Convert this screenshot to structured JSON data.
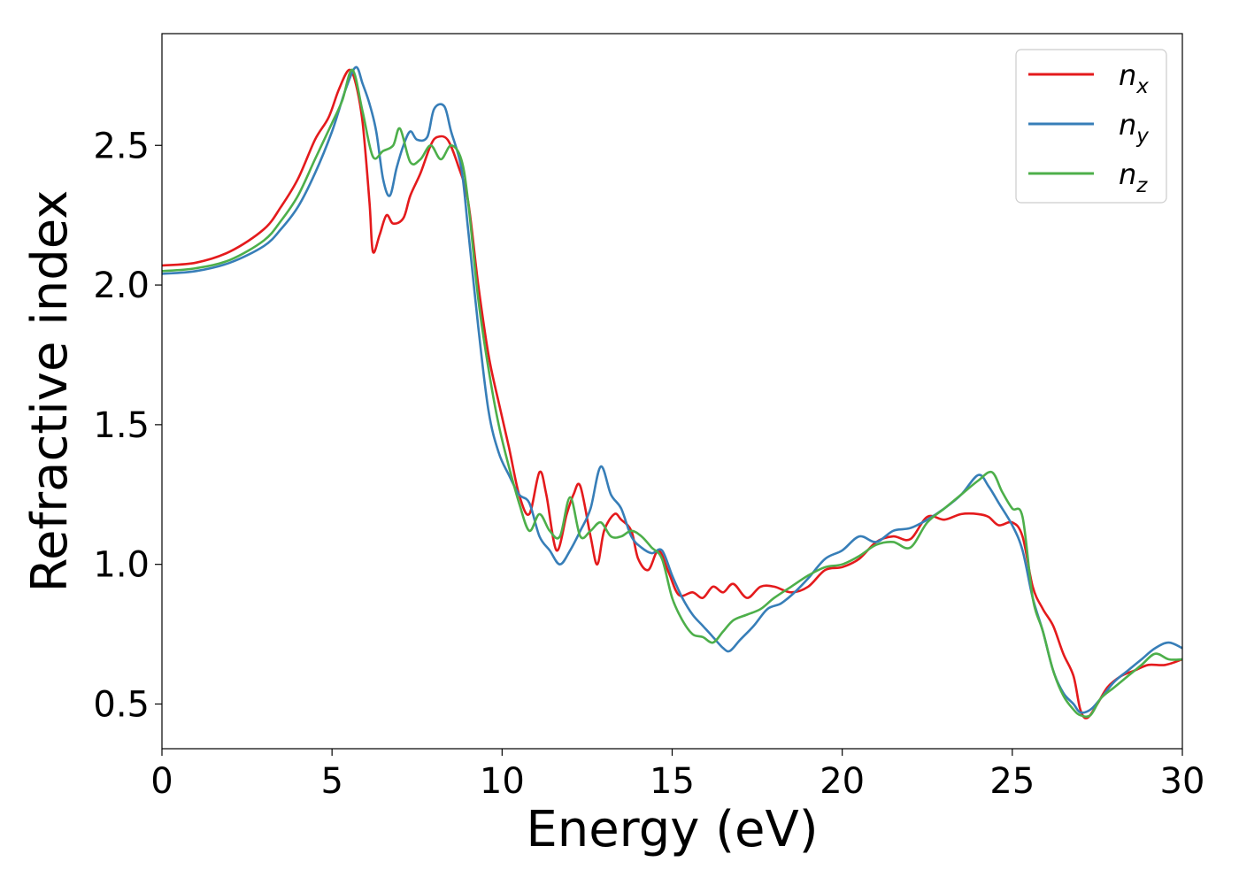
{
  "chart_data": {
    "type": "line",
    "title": "",
    "xlabel": "Energy (eV)",
    "ylabel": "Refractive index",
    "xlim": [
      0,
      30
    ],
    "ylim": [
      0.34,
      2.9
    ],
    "xticks": [
      0,
      5,
      10,
      15,
      20,
      25,
      30
    ],
    "xtick_labels": [
      "0",
      "5",
      "10",
      "15",
      "20",
      "25",
      "30"
    ],
    "yticks": [
      0.5,
      1.0,
      1.5,
      2.0,
      2.5
    ],
    "ytick_labels": [
      "0.5",
      "1.0",
      "1.5",
      "2.0",
      "2.5"
    ],
    "grid": false,
    "legend_position": "top-right",
    "series": [
      {
        "name": "n",
        "subscript": "x",
        "color": "#e41a1c",
        "points": [
          [
            0,
            2.07
          ],
          [
            1,
            2.08
          ],
          [
            2,
            2.12
          ],
          [
            3,
            2.2
          ],
          [
            3.5,
            2.28
          ],
          [
            4,
            2.38
          ],
          [
            4.5,
            2.52
          ],
          [
            4.9,
            2.6
          ],
          [
            5.2,
            2.7
          ],
          [
            5.5,
            2.77
          ],
          [
            5.7,
            2.72
          ],
          [
            5.9,
            2.58
          ],
          [
            6.1,
            2.3
          ],
          [
            6.2,
            2.12
          ],
          [
            6.4,
            2.18
          ],
          [
            6.6,
            2.25
          ],
          [
            6.8,
            2.22
          ],
          [
            7.1,
            2.24
          ],
          [
            7.3,
            2.32
          ],
          [
            7.6,
            2.4
          ],
          [
            7.9,
            2.5
          ],
          [
            8.1,
            2.53
          ],
          [
            8.4,
            2.52
          ],
          [
            8.7,
            2.43
          ],
          [
            9.0,
            2.3
          ],
          [
            9.3,
            2.0
          ],
          [
            9.6,
            1.75
          ],
          [
            9.9,
            1.58
          ],
          [
            10.2,
            1.42
          ],
          [
            10.5,
            1.25
          ],
          [
            10.8,
            1.18
          ],
          [
            11.1,
            1.33
          ],
          [
            11.3,
            1.25
          ],
          [
            11.6,
            1.05
          ],
          [
            11.9,
            1.18
          ],
          [
            12.1,
            1.25
          ],
          [
            12.3,
            1.28
          ],
          [
            12.6,
            1.1
          ],
          [
            12.8,
            1.0
          ],
          [
            13.0,
            1.12
          ],
          [
            13.3,
            1.18
          ],
          [
            13.5,
            1.16
          ],
          [
            13.8,
            1.12
          ],
          [
            14.0,
            1.02
          ],
          [
            14.3,
            0.98
          ],
          [
            14.6,
            1.05
          ],
          [
            14.9,
            0.97
          ],
          [
            15.2,
            0.89
          ],
          [
            15.6,
            0.9
          ],
          [
            15.9,
            0.88
          ],
          [
            16.2,
            0.92
          ],
          [
            16.5,
            0.9
          ],
          [
            16.8,
            0.93
          ],
          [
            17.2,
            0.88
          ],
          [
            17.6,
            0.92
          ],
          [
            18.0,
            0.92
          ],
          [
            18.5,
            0.9
          ],
          [
            19.0,
            0.92
          ],
          [
            19.5,
            0.98
          ],
          [
            20.0,
            0.99
          ],
          [
            20.5,
            1.02
          ],
          [
            21.0,
            1.08
          ],
          [
            21.5,
            1.1
          ],
          [
            22.0,
            1.09
          ],
          [
            22.5,
            1.17
          ],
          [
            23.0,
            1.16
          ],
          [
            23.5,
            1.18
          ],
          [
            24.0,
            1.18
          ],
          [
            24.3,
            1.17
          ],
          [
            24.6,
            1.14
          ],
          [
            25.0,
            1.15
          ],
          [
            25.3,
            1.1
          ],
          [
            25.6,
            0.92
          ],
          [
            25.9,
            0.84
          ],
          [
            26.2,
            0.78
          ],
          [
            26.5,
            0.68
          ],
          [
            26.8,
            0.6
          ],
          [
            27.0,
            0.48
          ],
          [
            27.2,
            0.45
          ],
          [
            27.5,
            0.5
          ],
          [
            27.8,
            0.56
          ],
          [
            28.2,
            0.6
          ],
          [
            28.6,
            0.62
          ],
          [
            29.0,
            0.64
          ],
          [
            29.5,
            0.64
          ],
          [
            30,
            0.66
          ]
        ]
      },
      {
        "name": "n",
        "subscript": "y",
        "color": "#377eb8",
        "points": [
          [
            0,
            2.04
          ],
          [
            1,
            2.05
          ],
          [
            2,
            2.08
          ],
          [
            3,
            2.14
          ],
          [
            3.5,
            2.2
          ],
          [
            4,
            2.28
          ],
          [
            4.5,
            2.4
          ],
          [
            5.0,
            2.55
          ],
          [
            5.4,
            2.7
          ],
          [
            5.7,
            2.78
          ],
          [
            5.9,
            2.72
          ],
          [
            6.1,
            2.65
          ],
          [
            6.3,
            2.55
          ],
          [
            6.5,
            2.38
          ],
          [
            6.7,
            2.32
          ],
          [
            6.9,
            2.42
          ],
          [
            7.1,
            2.5
          ],
          [
            7.3,
            2.55
          ],
          [
            7.5,
            2.52
          ],
          [
            7.8,
            2.53
          ],
          [
            8.0,
            2.63
          ],
          [
            8.3,
            2.64
          ],
          [
            8.5,
            2.55
          ],
          [
            8.8,
            2.42
          ],
          [
            9.0,
            2.2
          ],
          [
            9.3,
            1.85
          ],
          [
            9.6,
            1.55
          ],
          [
            9.9,
            1.4
          ],
          [
            10.2,
            1.32
          ],
          [
            10.5,
            1.25
          ],
          [
            10.8,
            1.22
          ],
          [
            11.1,
            1.1
          ],
          [
            11.4,
            1.05
          ],
          [
            11.7,
            1.0
          ],
          [
            12.0,
            1.05
          ],
          [
            12.3,
            1.12
          ],
          [
            12.6,
            1.2
          ],
          [
            12.9,
            1.35
          ],
          [
            13.2,
            1.25
          ],
          [
            13.5,
            1.2
          ],
          [
            13.8,
            1.1
          ],
          [
            14.1,
            1.06
          ],
          [
            14.4,
            1.04
          ],
          [
            14.7,
            1.05
          ],
          [
            15.0,
            0.96
          ],
          [
            15.3,
            0.88
          ],
          [
            15.6,
            0.82
          ],
          [
            15.9,
            0.78
          ],
          [
            16.2,
            0.74
          ],
          [
            16.5,
            0.7
          ],
          [
            16.7,
            0.69
          ],
          [
            17.0,
            0.73
          ],
          [
            17.4,
            0.78
          ],
          [
            17.8,
            0.84
          ],
          [
            18.2,
            0.86
          ],
          [
            18.6,
            0.9
          ],
          [
            19.0,
            0.95
          ],
          [
            19.5,
            1.02
          ],
          [
            20.0,
            1.05
          ],
          [
            20.5,
            1.1
          ],
          [
            21.0,
            1.08
          ],
          [
            21.5,
            1.12
          ],
          [
            22.0,
            1.13
          ],
          [
            22.5,
            1.16
          ],
          [
            23.0,
            1.2
          ],
          [
            23.5,
            1.25
          ],
          [
            24.0,
            1.32
          ],
          [
            24.3,
            1.28
          ],
          [
            24.6,
            1.22
          ],
          [
            25.0,
            1.14
          ],
          [
            25.3,
            1.05
          ],
          [
            25.6,
            0.88
          ],
          [
            25.9,
            0.76
          ],
          [
            26.2,
            0.62
          ],
          [
            26.5,
            0.54
          ],
          [
            26.8,
            0.5
          ],
          [
            27.0,
            0.47
          ],
          [
            27.3,
            0.48
          ],
          [
            27.6,
            0.52
          ],
          [
            28.0,
            0.58
          ],
          [
            28.4,
            0.62
          ],
          [
            28.8,
            0.66
          ],
          [
            29.2,
            0.7
          ],
          [
            29.6,
            0.72
          ],
          [
            30,
            0.7
          ]
        ]
      },
      {
        "name": "n",
        "subscript": "z",
        "color": "#4daf4a",
        "points": [
          [
            0,
            2.05
          ],
          [
            1,
            2.06
          ],
          [
            2,
            2.09
          ],
          [
            3,
            2.16
          ],
          [
            3.5,
            2.23
          ],
          [
            4,
            2.32
          ],
          [
            4.5,
            2.45
          ],
          [
            5.0,
            2.58
          ],
          [
            5.3,
            2.66
          ],
          [
            5.6,
            2.77
          ],
          [
            5.9,
            2.62
          ],
          [
            6.2,
            2.46
          ],
          [
            6.5,
            2.48
          ],
          [
            6.8,
            2.5
          ],
          [
            7.0,
            2.56
          ],
          [
            7.3,
            2.44
          ],
          [
            7.6,
            2.45
          ],
          [
            7.9,
            2.5
          ],
          [
            8.2,
            2.45
          ],
          [
            8.5,
            2.5
          ],
          [
            8.8,
            2.45
          ],
          [
            9.0,
            2.3
          ],
          [
            9.3,
            1.95
          ],
          [
            9.6,
            1.7
          ],
          [
            9.9,
            1.5
          ],
          [
            10.2,
            1.35
          ],
          [
            10.5,
            1.22
          ],
          [
            10.8,
            1.12
          ],
          [
            11.1,
            1.18
          ],
          [
            11.4,
            1.12
          ],
          [
            11.7,
            1.1
          ],
          [
            12.0,
            1.24
          ],
          [
            12.3,
            1.1
          ],
          [
            12.6,
            1.12
          ],
          [
            12.9,
            1.15
          ],
          [
            13.2,
            1.1
          ],
          [
            13.5,
            1.1
          ],
          [
            13.8,
            1.12
          ],
          [
            14.1,
            1.1
          ],
          [
            14.4,
            1.06
          ],
          [
            14.7,
            1.02
          ],
          [
            15.0,
            0.88
          ],
          [
            15.3,
            0.8
          ],
          [
            15.6,
            0.75
          ],
          [
            15.9,
            0.74
          ],
          [
            16.2,
            0.72
          ],
          [
            16.5,
            0.76
          ],
          [
            16.8,
            0.8
          ],
          [
            17.2,
            0.82
          ],
          [
            17.6,
            0.84
          ],
          [
            18.0,
            0.88
          ],
          [
            18.5,
            0.92
          ],
          [
            19.0,
            0.96
          ],
          [
            19.5,
            0.99
          ],
          [
            20.0,
            1.0
          ],
          [
            20.5,
            1.03
          ],
          [
            21.0,
            1.07
          ],
          [
            21.5,
            1.08
          ],
          [
            22.0,
            1.06
          ],
          [
            22.5,
            1.15
          ],
          [
            23.0,
            1.2
          ],
          [
            23.5,
            1.25
          ],
          [
            24.0,
            1.3
          ],
          [
            24.4,
            1.33
          ],
          [
            24.7,
            1.26
          ],
          [
            25.0,
            1.2
          ],
          [
            25.3,
            1.17
          ],
          [
            25.6,
            0.88
          ],
          [
            25.9,
            0.76
          ],
          [
            26.2,
            0.62
          ],
          [
            26.5,
            0.53
          ],
          [
            26.8,
            0.48
          ],
          [
            27.0,
            0.46
          ],
          [
            27.3,
            0.46
          ],
          [
            27.6,
            0.52
          ],
          [
            28.0,
            0.56
          ],
          [
            28.4,
            0.6
          ],
          [
            28.8,
            0.64
          ],
          [
            29.2,
            0.68
          ],
          [
            29.6,
            0.66
          ],
          [
            30,
            0.66
          ]
        ]
      }
    ]
  }
}
